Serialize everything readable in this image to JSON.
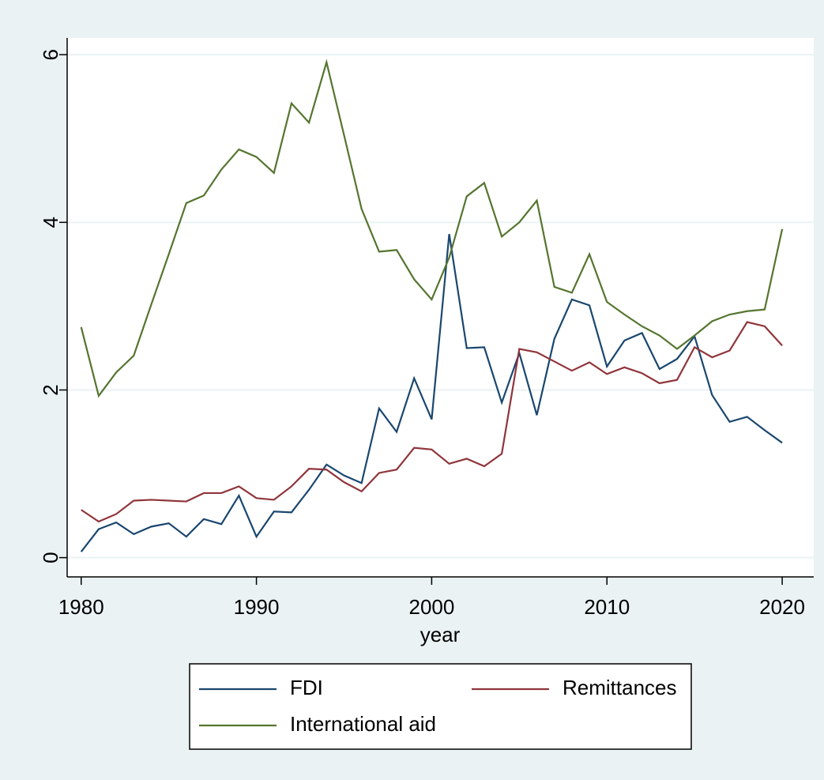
{
  "chart_data": {
    "type": "line",
    "x": [
      1980,
      1981,
      1982,
      1983,
      1984,
      1985,
      1986,
      1987,
      1988,
      1989,
      1990,
      1991,
      1992,
      1993,
      1994,
      1995,
      1996,
      1997,
      1998,
      1999,
      2000,
      2001,
      2002,
      2003,
      2004,
      2005,
      2006,
      2007,
      2008,
      2009,
      2010,
      2011,
      2012,
      2013,
      2014,
      2015,
      2016,
      2017,
      2018,
      2019,
      2020
    ],
    "series": [
      {
        "name": "FDI",
        "color": "#1a476f",
        "values": [
          0.07,
          0.34,
          0.42,
          0.28,
          0.37,
          0.41,
          0.25,
          0.46,
          0.4,
          0.74,
          0.25,
          0.55,
          0.54,
          0.81,
          1.11,
          0.98,
          0.89,
          1.78,
          1.5,
          2.14,
          1.65,
          3.86,
          2.5,
          2.51,
          1.85,
          2.44,
          1.7,
          2.61,
          3.08,
          3.01,
          2.28,
          2.59,
          2.68,
          2.25,
          2.37,
          2.64,
          1.94,
          1.62,
          1.68,
          1.52,
          1.37
        ]
      },
      {
        "name": "Remittances",
        "color": "#90353b",
        "values": [
          0.57,
          0.43,
          0.52,
          0.68,
          0.69,
          0.68,
          0.67,
          0.77,
          0.77,
          0.85,
          0.71,
          0.69,
          0.85,
          1.06,
          1.05,
          0.9,
          0.79,
          1.01,
          1.05,
          1.31,
          1.29,
          1.12,
          1.18,
          1.09,
          1.24,
          2.49,
          2.45,
          2.34,
          2.23,
          2.33,
          2.19,
          2.27,
          2.2,
          2.08,
          2.12,
          2.51,
          2.39,
          2.47,
          2.81,
          2.76,
          2.53
        ]
      },
      {
        "name": "International aid",
        "color": "#55752f",
        "values": [
          2.75,
          1.93,
          2.21,
          2.41,
          3.02,
          3.62,
          4.23,
          4.32,
          4.63,
          4.87,
          4.78,
          4.59,
          5.42,
          5.19,
          5.91,
          5.04,
          4.16,
          3.65,
          3.67,
          3.32,
          3.08,
          3.58,
          4.31,
          4.47,
          3.83,
          4.0,
          4.26,
          3.23,
          3.16,
          3.62,
          3.05,
          2.9,
          2.76,
          2.65,
          2.49,
          2.65,
          2.82,
          2.9,
          2.94,
          2.96,
          3.92
        ]
      }
    ],
    "xlabel": "year",
    "xlim": [
      1979.2,
      2021.8
    ],
    "xticks": [
      1980,
      1990,
      2000,
      2010,
      2020
    ],
    "ylim": [
      -0.23,
      6.2
    ],
    "yticks": [
      0,
      2,
      4,
      6
    ],
    "grid": true,
    "legend": "bottom"
  }
}
